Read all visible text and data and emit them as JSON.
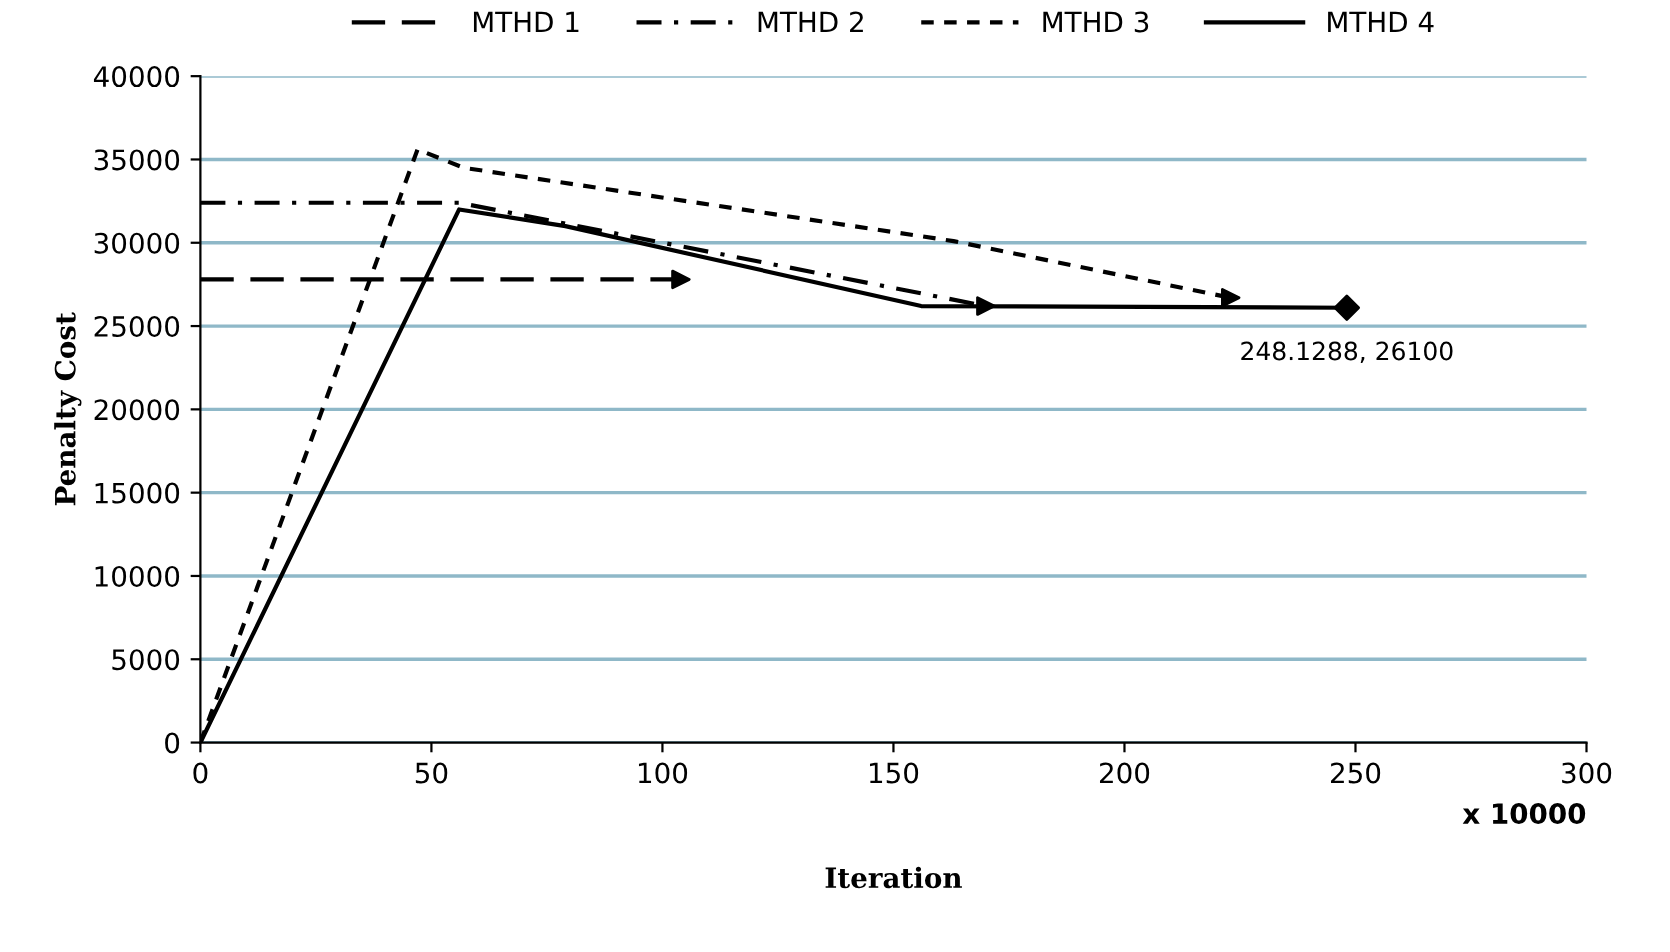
{
  "chart_data": {
    "type": "line",
    "xlabel": "Iteration",
    "ylabel": "Penalty Cost",
    "xlim": [
      0,
      300
    ],
    "xticks": [
      0,
      50,
      100,
      150,
      200,
      250,
      300
    ],
    "ylim": [
      0,
      40000
    ],
    "yticks": [
      0,
      5000,
      10000,
      15000,
      20000,
      25000,
      30000,
      35000,
      40000
    ],
    "grid": "y",
    "legend": "top",
    "series": [
      {
        "name": "MTHD 1",
        "color": "#000000",
        "line_style": "dashed",
        "x": [
          0,
          104
        ],
        "values": [
          27800,
          27800
        ]
      },
      {
        "name": "MTHD 2",
        "color": "#000000",
        "line_style": "dashdot",
        "x": [
          0,
          56,
          170
        ],
        "values": [
          32400,
          32400,
          26200
        ]
      },
      {
        "name": "MTHD 3",
        "color": "#000000",
        "line_style": "dotted",
        "x": [
          0,
          47,
          57,
          163,
          223
        ],
        "values": [
          0,
          35600,
          34500,
          30100,
          26700
        ]
      },
      {
        "name": "MTHD 4",
        "color": "#000000",
        "line_style": "solid",
        "x": [
          0,
          56,
          79,
          156,
          248.1288
        ],
        "values": [
          0,
          32000,
          31000,
          26200,
          26100
        ]
      }
    ],
    "annotations": [
      {
        "text": "248.1288, 26100",
        "x": 248.1288,
        "y": 26100
      },
      "x 10000"
    ]
  }
}
